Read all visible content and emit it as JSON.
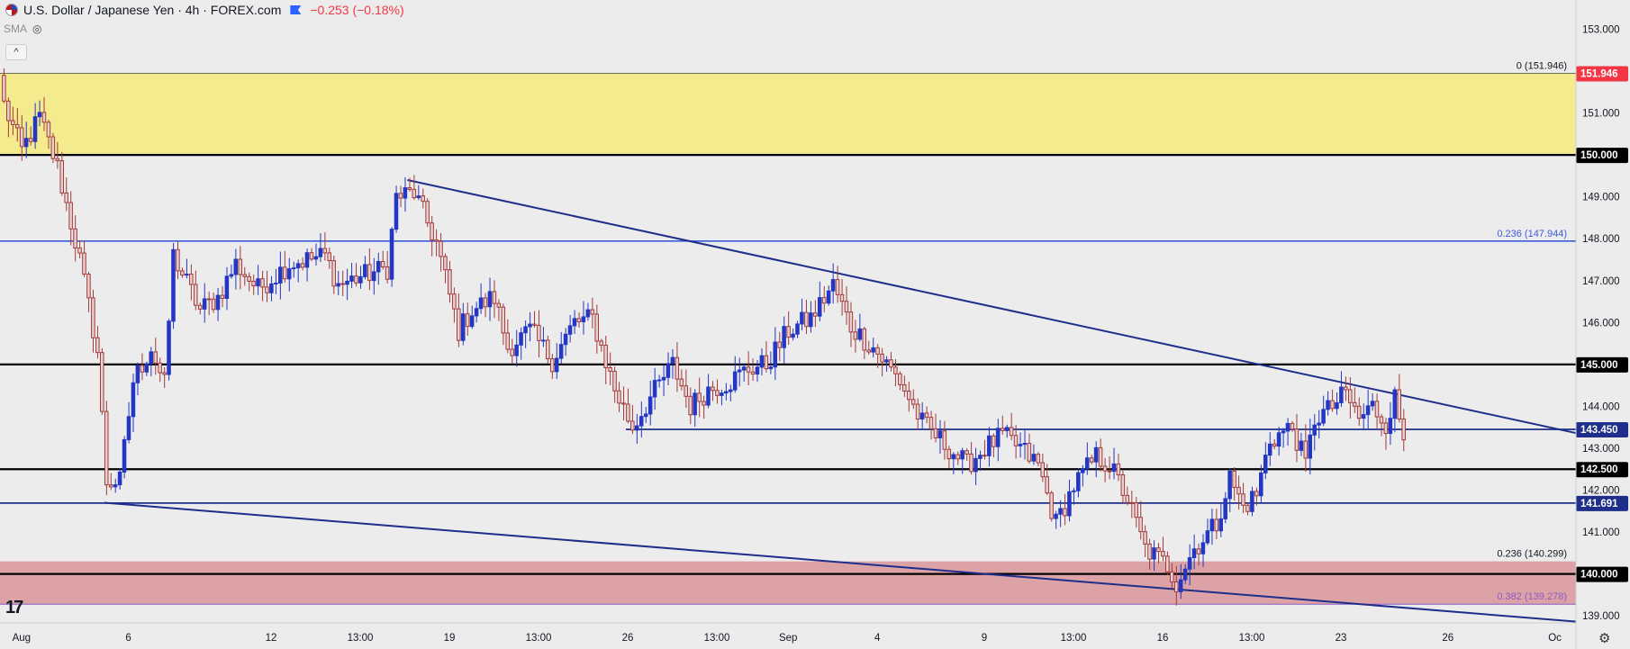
{
  "header": {
    "title": "U.S. Dollar / Japanese Yen · 4h · FOREX.com",
    "change": "−0.253 (−0.18%)",
    "indicator": "SMA",
    "flag_icon": "usd-jpy-flag-icon",
    "eye_icon": "eye-slash-icon"
  },
  "collapse_label": "^",
  "logo_text": "17",
  "colors": {
    "up": "#2337c4",
    "down": "#a23a3a",
    "yellow_zone": "#f4ea8e",
    "red_zone": "#dca2a5",
    "trend": "#1e2e8a",
    "fib_blue": "#3d5ad9",
    "fib_purple": "#8a5cc7",
    "background": "#ececec"
  },
  "chart_data": {
    "type": "candlestick",
    "ylim": [
      138.8,
      153.5
    ],
    "y_ticks": [
      "153.000",
      "152.000",
      "151.000",
      "150.000",
      "149.000",
      "148.000",
      "147.000",
      "146.000",
      "145.000",
      "144.000",
      "143.000",
      "142.000",
      "141.000",
      "140.000",
      "139.000"
    ],
    "x_ticks": [
      {
        "label": "Aug",
        "bar": 4
      },
      {
        "label": "6",
        "bar": 28
      },
      {
        "label": "12",
        "bar": 60
      },
      {
        "label": "13:00",
        "bar": 80
      },
      {
        "label": "19",
        "bar": 100
      },
      {
        "label": "13:00",
        "bar": 120
      },
      {
        "label": "26",
        "bar": 140
      },
      {
        "label": "13:00",
        "bar": 160
      },
      {
        "label": "Sep",
        "bar": 176
      },
      {
        "label": "4",
        "bar": 196
      },
      {
        "label": "9",
        "bar": 220
      },
      {
        "label": "13:00",
        "bar": 240
      },
      {
        "label": "16",
        "bar": 260
      },
      {
        "label": "13:00",
        "bar": 280
      },
      {
        "label": "23",
        "bar": 300
      },
      {
        "label": "26",
        "bar": 324
      },
      {
        "label": "Oc",
        "bar": 348
      }
    ],
    "horizontal_levels": [
      {
        "price": 150.0,
        "label": "150.000",
        "style": "black"
      },
      {
        "price": 145.0,
        "label": "145.000",
        "style": "black"
      },
      {
        "price": 142.5,
        "label": "142.500",
        "style": "black"
      },
      {
        "price": 140.0,
        "label": "140.000",
        "style": "black"
      },
      {
        "price": 147.944,
        "label": "",
        "style": "blue"
      },
      {
        "price": 141.691,
        "label": "141.691",
        "style": "blue"
      },
      {
        "price": 143.45,
        "label": "143.450",
        "style": "blue",
        "from_bar": 140
      },
      {
        "price": 139.278,
        "label": "",
        "style": "purple"
      },
      {
        "price": 151.946,
        "label": "151.946",
        "style": "red-tag"
      }
    ],
    "fib_labels": [
      {
        "text": "0 (151.946)",
        "price": 151.946,
        "color": "#131722"
      },
      {
        "text": "0.236 (147.944)",
        "price": 147.944,
        "color": "#3d5ad9"
      },
      {
        "text": "0.236 (140.299)",
        "price": 140.299,
        "color": "#131722"
      },
      {
        "text": "0.382 (139.278)",
        "price": 139.278,
        "color": "#8a5cc7"
      }
    ],
    "zones": [
      {
        "top": 151.946,
        "bottom": 150.0,
        "color": "yellow"
      },
      {
        "top": 140.299,
        "bottom": 139.278,
        "color": "red"
      }
    ],
    "trendlines": [
      {
        "from": {
          "bar": 91,
          "price": 149.4
        },
        "to": {
          "bar": 358,
          "price": 143.25
        }
      },
      {
        "from": {
          "bar": 23,
          "price": 141.7
        },
        "to": {
          "bar": 358,
          "price": 138.82
        }
      }
    ],
    "anchors": [
      {
        "bar": 0,
        "price": 151.2
      },
      {
        "bar": 4,
        "price": 150.1
      },
      {
        "bar": 8,
        "price": 150.9
      },
      {
        "bar": 12,
        "price": 149.7
      },
      {
        "bar": 17,
        "price": 147.5
      },
      {
        "bar": 21,
        "price": 145.3
      },
      {
        "bar": 23,
        "price": 142.2
      },
      {
        "bar": 26,
        "price": 142.2
      },
      {
        "bar": 29,
        "price": 144.6
      },
      {
        "bar": 33,
        "price": 145.4
      },
      {
        "bar": 36,
        "price": 144.5
      },
      {
        "bar": 38,
        "price": 147.6
      },
      {
        "bar": 44,
        "price": 146.3
      },
      {
        "bar": 48,
        "price": 146.6
      },
      {
        "bar": 52,
        "price": 147.4
      },
      {
        "bar": 57,
        "price": 146.8
      },
      {
        "bar": 64,
        "price": 147.4
      },
      {
        "bar": 72,
        "price": 147.6
      },
      {
        "bar": 75,
        "price": 146.9
      },
      {
        "bar": 80,
        "price": 147.1
      },
      {
        "bar": 86,
        "price": 147.3
      },
      {
        "bar": 88,
        "price": 149.0
      },
      {
        "bar": 92,
        "price": 149.1
      },
      {
        "bar": 97,
        "price": 147.9
      },
      {
        "bar": 102,
        "price": 145.8
      },
      {
        "bar": 105,
        "price": 146.3
      },
      {
        "bar": 110,
        "price": 146.6
      },
      {
        "bar": 113,
        "price": 145.4
      },
      {
        "bar": 118,
        "price": 145.8
      },
      {
        "bar": 123,
        "price": 145.1
      },
      {
        "bar": 128,
        "price": 146.0
      },
      {
        "bar": 132,
        "price": 146.1
      },
      {
        "bar": 137,
        "price": 144.4
      },
      {
        "bar": 141,
        "price": 143.5
      },
      {
        "bar": 145,
        "price": 144.2
      },
      {
        "bar": 150,
        "price": 145.0
      },
      {
        "bar": 154,
        "price": 144.0
      },
      {
        "bar": 158,
        "price": 144.4
      },
      {
        "bar": 163,
        "price": 144.6
      },
      {
        "bar": 167,
        "price": 144.9
      },
      {
        "bar": 171,
        "price": 145.0
      },
      {
        "bar": 176,
        "price": 145.8
      },
      {
        "bar": 181,
        "price": 146.1
      },
      {
        "bar": 186,
        "price": 146.9
      },
      {
        "bar": 190,
        "price": 145.9
      },
      {
        "bar": 195,
        "price": 145.4
      },
      {
        "bar": 201,
        "price": 144.6
      },
      {
        "bar": 206,
        "price": 143.6
      },
      {
        "bar": 211,
        "price": 143.1
      },
      {
        "bar": 216,
        "price": 142.6
      },
      {
        "bar": 220,
        "price": 143.0
      },
      {
        "bar": 224,
        "price": 143.3
      },
      {
        "bar": 228,
        "price": 143.0
      },
      {
        "bar": 232,
        "price": 142.6
      },
      {
        "bar": 236,
        "price": 141.2
      },
      {
        "bar": 240,
        "price": 142.1
      },
      {
        "bar": 245,
        "price": 142.8
      },
      {
        "bar": 248,
        "price": 142.6
      },
      {
        "bar": 252,
        "price": 141.8
      },
      {
        "bar": 256,
        "price": 140.6
      },
      {
        "bar": 261,
        "price": 140.2
      },
      {
        "bar": 263,
        "price": 139.8
      },
      {
        "bar": 267,
        "price": 140.6
      },
      {
        "bar": 272,
        "price": 141.2
      },
      {
        "bar": 275,
        "price": 142.3
      },
      {
        "bar": 278,
        "price": 141.6
      },
      {
        "bar": 281,
        "price": 141.9
      },
      {
        "bar": 284,
        "price": 143.2
      },
      {
        "bar": 289,
        "price": 143.5
      },
      {
        "bar": 292,
        "price": 142.6
      },
      {
        "bar": 294,
        "price": 143.7
      },
      {
        "bar": 297,
        "price": 143.9
      },
      {
        "bar": 301,
        "price": 144.3
      },
      {
        "bar": 304,
        "price": 143.7
      },
      {
        "bar": 307,
        "price": 144.0
      },
      {
        "bar": 310,
        "price": 143.6
      },
      {
        "bar": 312,
        "price": 144.2
      },
      {
        "bar": 314,
        "price": 143.2
      }
    ]
  }
}
